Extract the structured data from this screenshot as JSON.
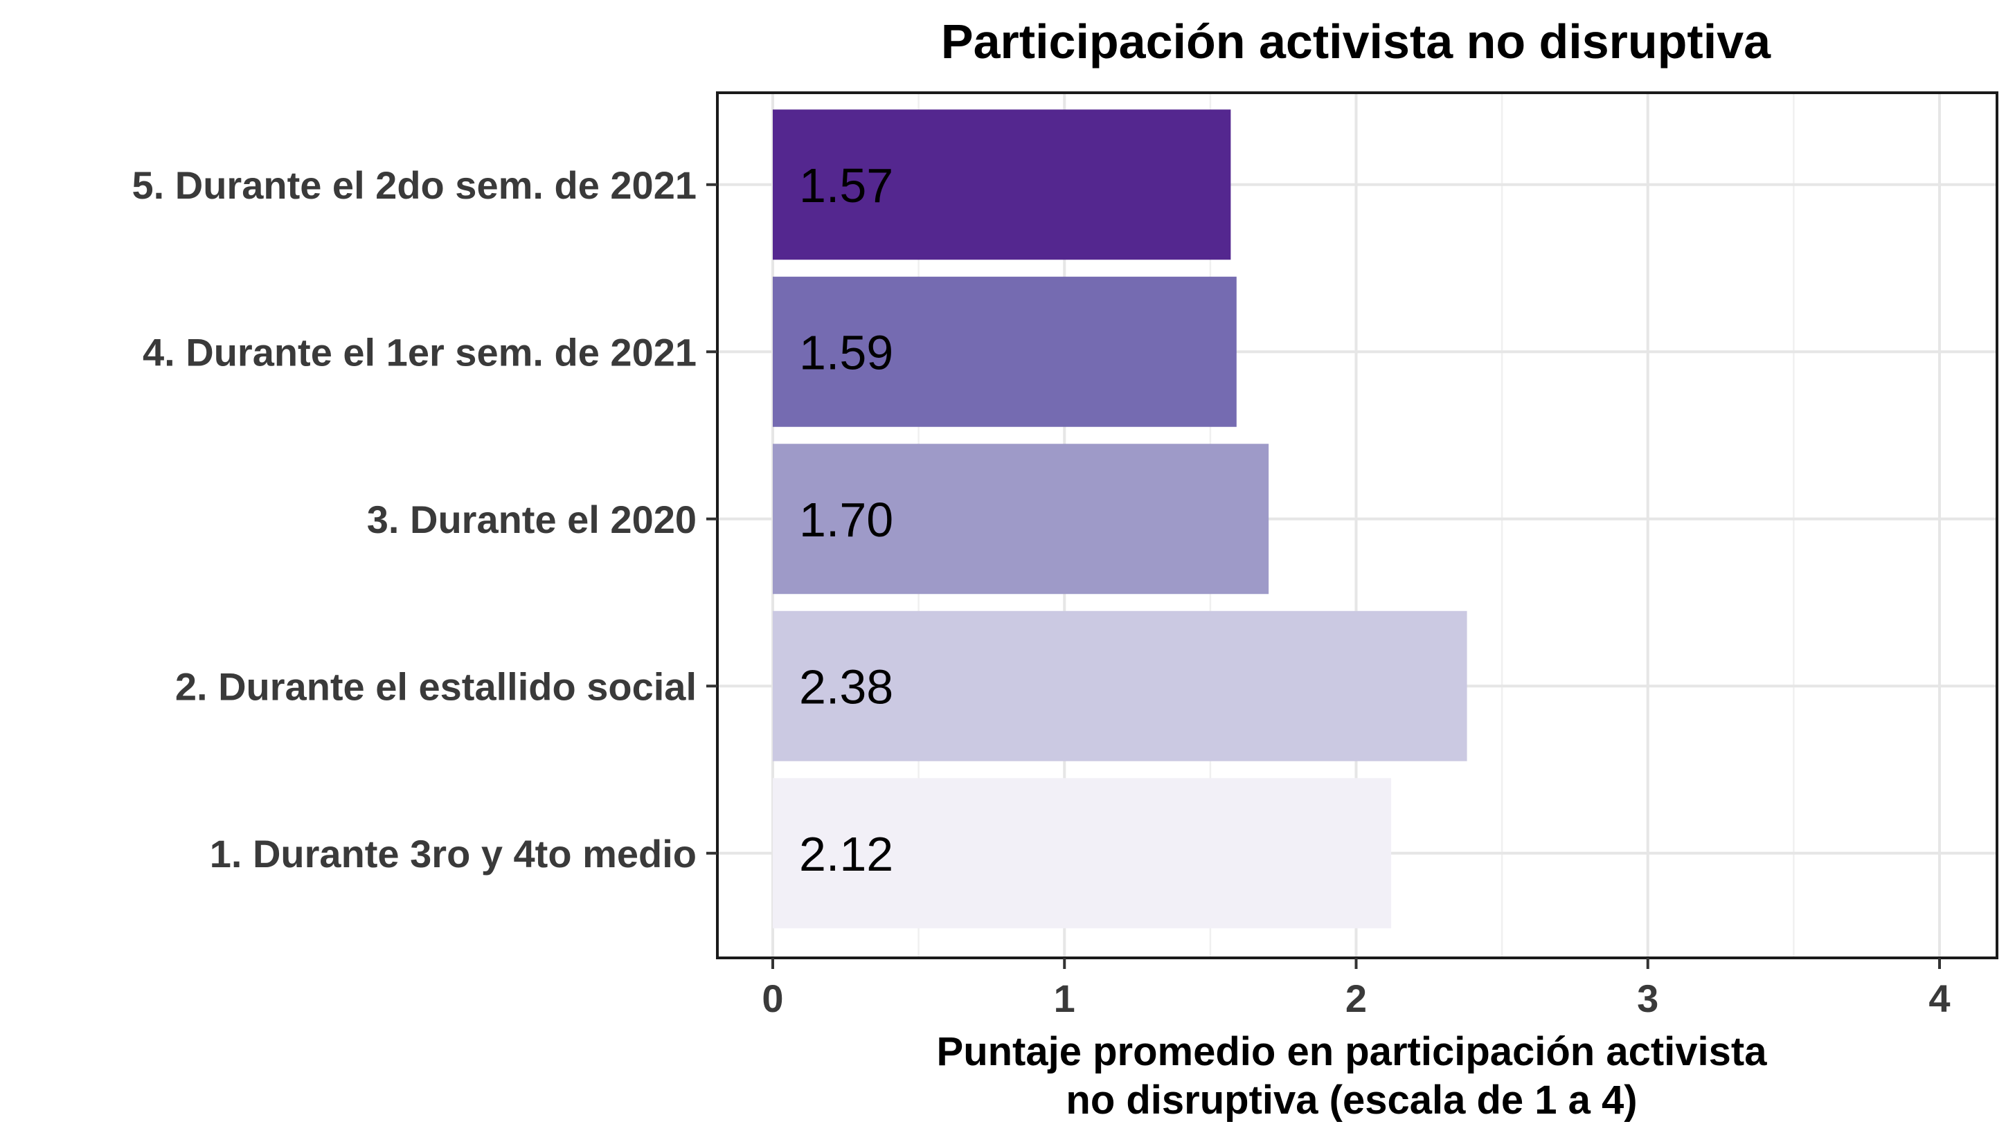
{
  "chart_data": {
    "type": "bar",
    "orientation": "horizontal",
    "title": "Participación activista no disruptiva",
    "xlabel_lines": [
      "Puntaje promedio en participación activista",
      "no disruptiva (escala de 1 a 4)"
    ],
    "ylabel": "",
    "xlim": [
      0,
      4
    ],
    "xticks": [
      0,
      1,
      2,
      3,
      4
    ],
    "grid": true,
    "categories": [
      "5. Durante el 2do sem. de 2021",
      "4. Durante el 1er sem. de 2021",
      "3. Durante el 2020",
      "2. Durante el estallido social",
      "1. Durante 3ro y 4to medio"
    ],
    "values": [
      1.57,
      1.59,
      1.7,
      2.38,
      2.12
    ],
    "labels": [
      "1.57",
      "1.59",
      "1.70",
      "2.38",
      "2.12"
    ],
    "colors": [
      "#54278f",
      "#756bb1",
      "#9e9ac8",
      "#cbc9e2",
      "#f2f0f7"
    ]
  }
}
